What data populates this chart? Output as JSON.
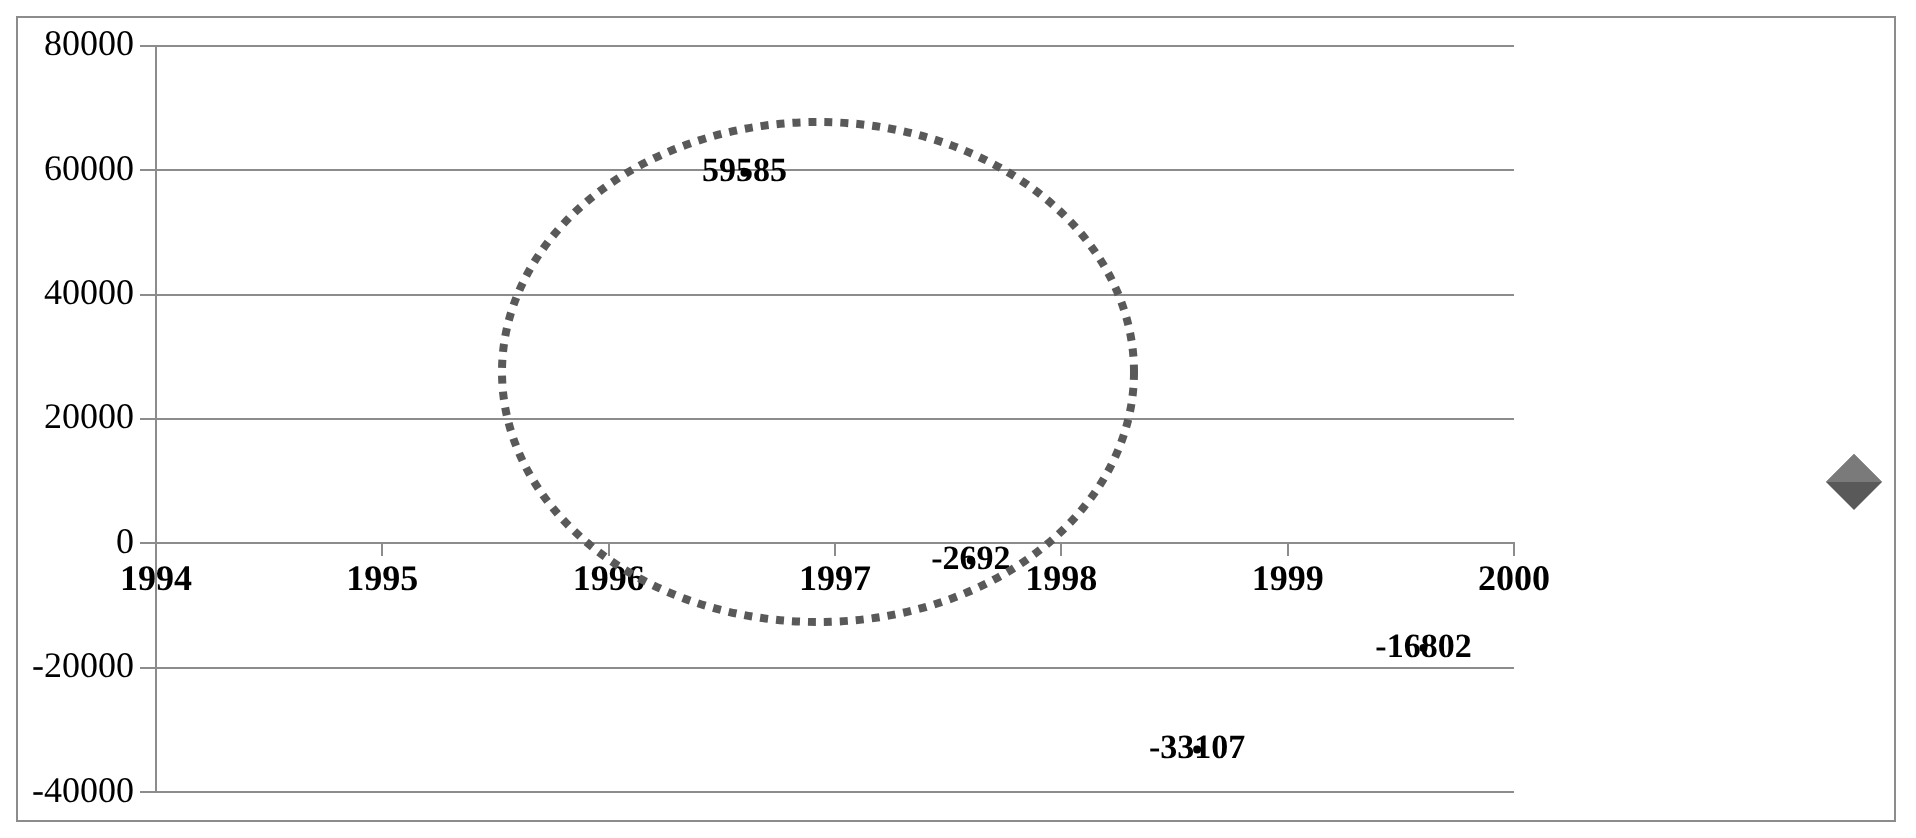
{
  "chart_data": {
    "type": "scatter",
    "x": [
      1996.6,
      1997.6,
      1998.6,
      1999.6
    ],
    "series": [
      {
        "color": "#000000",
        "values": [
          59585,
          -2692,
          -33107,
          -16802
        ]
      }
    ],
    "xlim": [
      1994,
      2000
    ],
    "xticks": [
      1994,
      1995,
      1996,
      1997,
      1998,
      1999,
      2000
    ],
    "ylim": [
      -40000,
      80000
    ],
    "yticks": [
      -40000,
      -20000,
      0,
      20000,
      40000,
      60000,
      80000
    ],
    "grid": "y",
    "marker": "circle",
    "data_labels": true,
    "legend": false
  }
}
